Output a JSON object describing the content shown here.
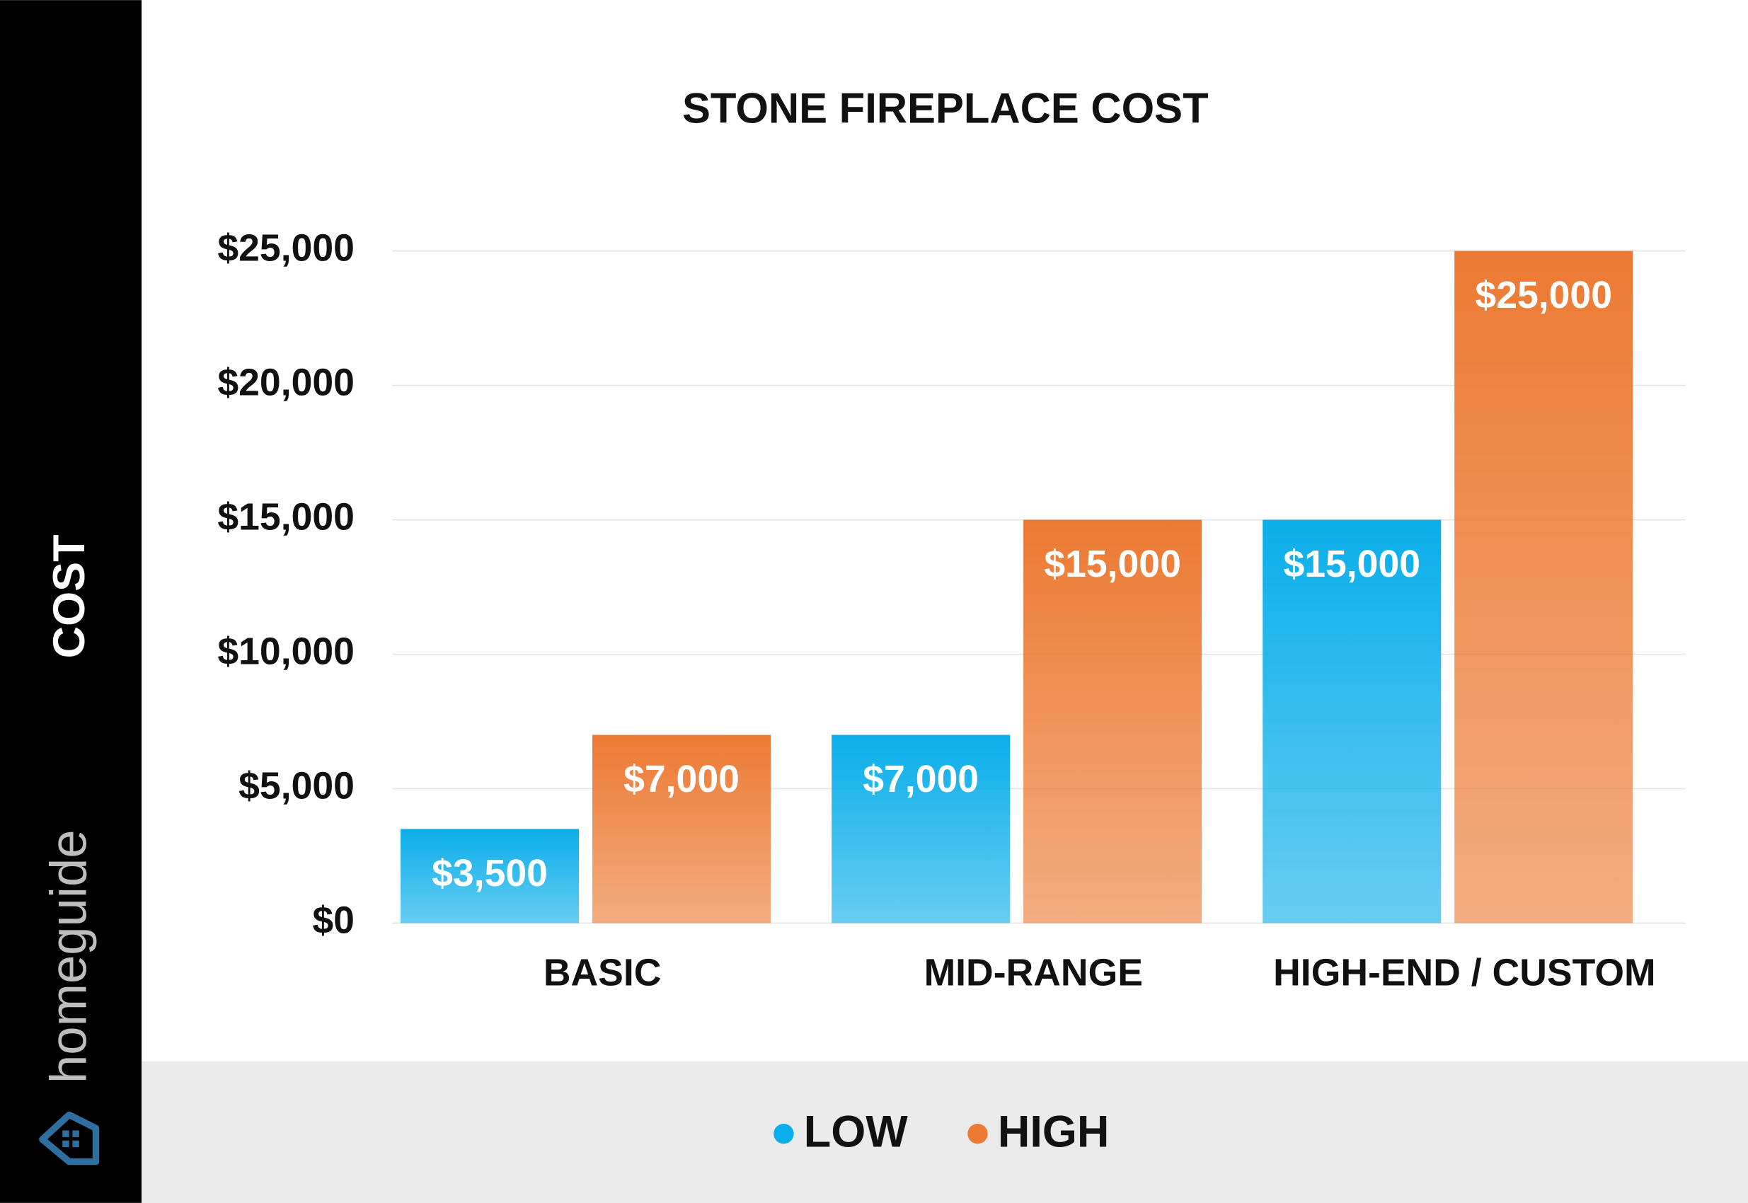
{
  "chart_data": {
    "type": "bar",
    "title": "STONE FIREPLACE COST",
    "y_label": "COST",
    "brand": "homeguide",
    "categories": [
      "BASIC",
      "MID-RANGE",
      "HIGH-END /  CUSTOM"
    ],
    "series": [
      {
        "name": "LOW",
        "color": "#0aaeea",
        "values": [
          3500,
          7000,
          15000
        ],
        "value_labels": [
          "$3,500",
          "$7,000",
          "$15,000"
        ]
      },
      {
        "name": "HIGH",
        "color": "#ec7a33",
        "values": [
          7000,
          15000,
          25000
        ],
        "value_labels": [
          "$7,000",
          "$15,000",
          "$25,000"
        ]
      }
    ],
    "ylim": [
      0,
      25000
    ],
    "yticks": [
      {
        "value": 0,
        "label": "$0"
      },
      {
        "value": 5000,
        "label": "$5,000"
      },
      {
        "value": 10000,
        "label": "$10,000"
      },
      {
        "value": 15000,
        "label": "$15,000"
      },
      {
        "value": 20000,
        "label": "$20,000"
      },
      {
        "value": 25000,
        "label": "$25,000"
      }
    ],
    "grid": true,
    "legend": "bottom"
  }
}
